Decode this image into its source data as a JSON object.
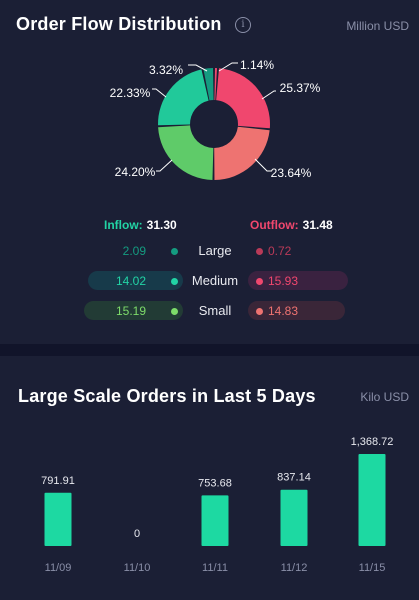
{
  "flow": {
    "title": "Order Flow Distribution",
    "unit": "Million USD",
    "info_glyph": "i",
    "donut": [
      {
        "label": "1.14%",
        "value": 1.14,
        "color": "#f0476e"
      },
      {
        "label": "25.37%",
        "value": 25.37,
        "color": "#f0476e"
      },
      {
        "label": "23.64%",
        "value": 23.64,
        "color": "#ee7371"
      },
      {
        "label": "24.20%",
        "value": 24.2,
        "color": "#5fcb69"
      },
      {
        "label": "22.33%",
        "value": 22.33,
        "color": "#21c99a"
      },
      {
        "label": "3.32%",
        "value": 3.32,
        "color": "#149b80"
      }
    ],
    "inflow_label": "Inflow:",
    "inflow_value": "31.30",
    "outflow_label": "Outflow:",
    "outflow_value": "31.48",
    "rows": [
      {
        "label": "Large",
        "in": "2.09",
        "out": "0.72",
        "in_color": "#149b80",
        "out_color": "#b93a58"
      },
      {
        "label": "Medium",
        "in": "14.02",
        "out": "15.93",
        "in_color": "#22d3a5",
        "out_color": "#f0476e"
      },
      {
        "label": "Small",
        "in": "15.19",
        "out": "14.83",
        "in_color": "#7ddb6a",
        "out_color": "#ee7371"
      }
    ]
  },
  "large": {
    "title": "Large Scale Orders in Last 5 Days",
    "unit": "Kilo USD",
    "chart_data": {
      "type": "bar",
      "categories": [
        "11/09",
        "11/10",
        "11/11",
        "11/12",
        "11/15"
      ],
      "values": [
        791.91,
        0,
        753.68,
        837.14,
        1368.72
      ],
      "value_labels": [
        "791.91",
        "0",
        "753.68",
        "837.14",
        "1,368.72"
      ],
      "title": "Large Scale Orders in Last 5 Days",
      "ylabel": "Kilo USD",
      "ylim": [
        0,
        1368.72
      ],
      "color": "#1dd9a2"
    }
  }
}
